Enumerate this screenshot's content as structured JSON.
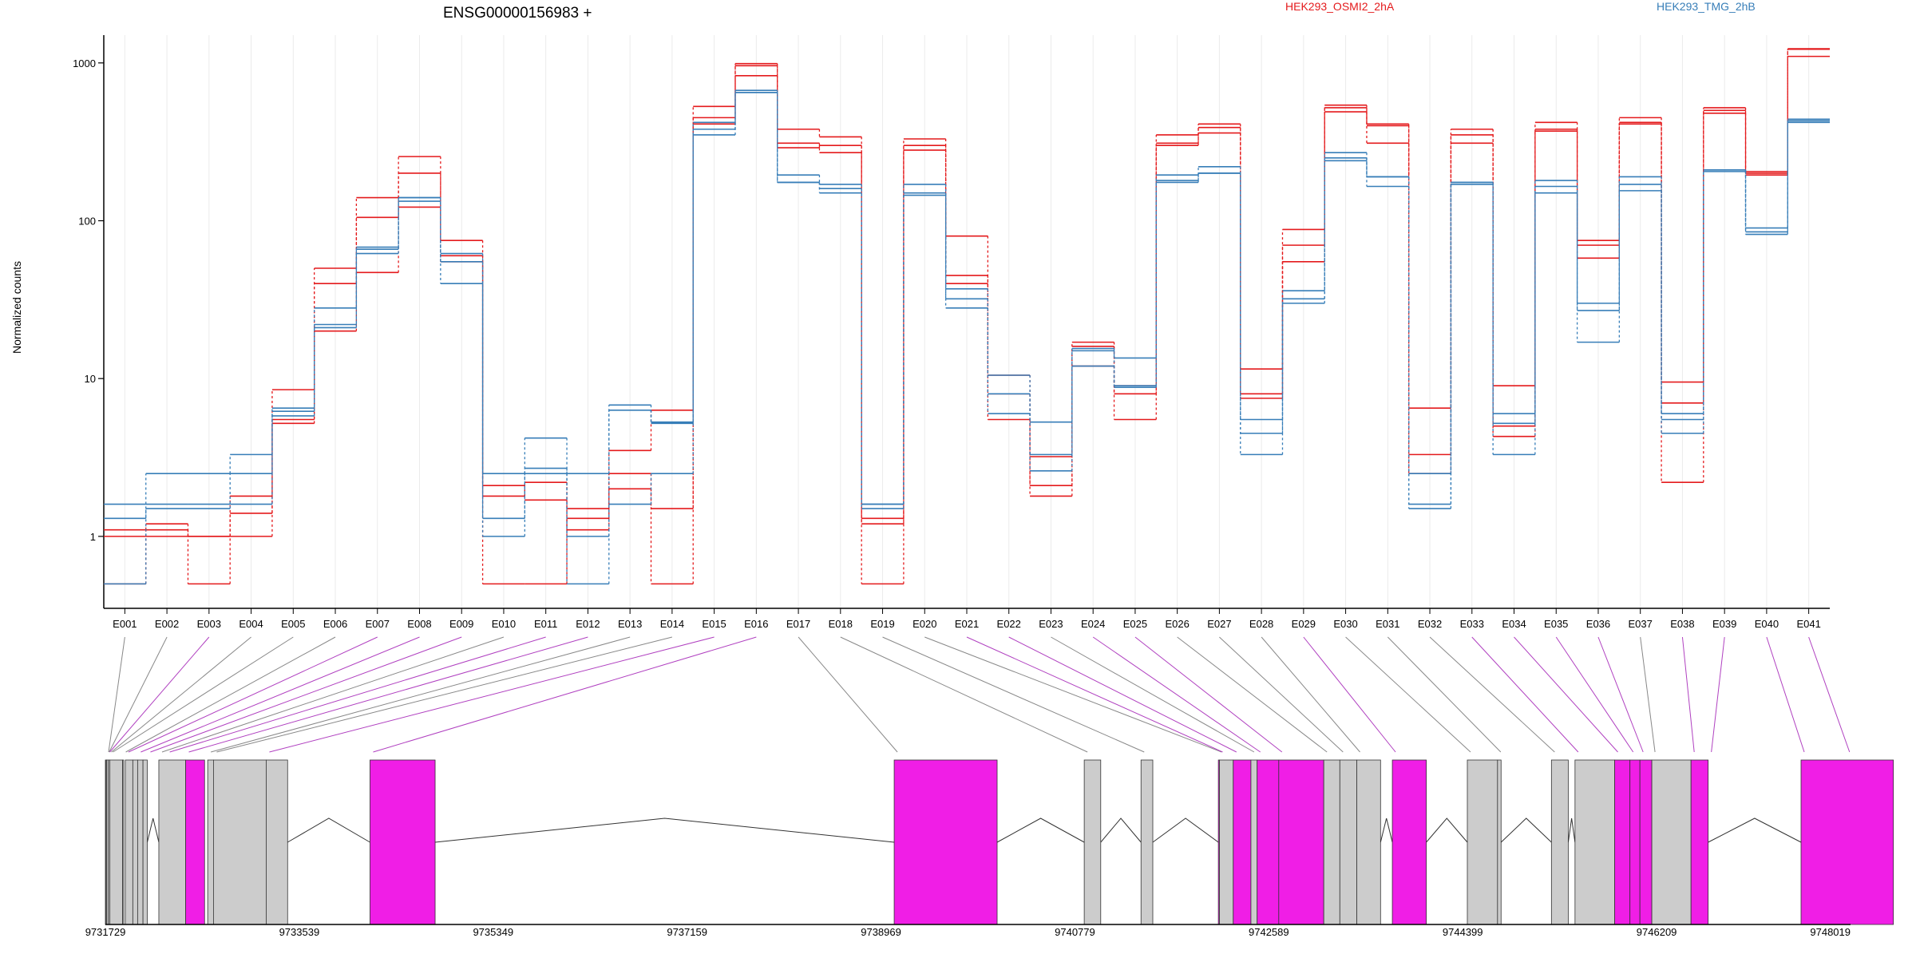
{
  "chart_data": {
    "type": "line",
    "title": "ENSG00000156983 +",
    "ylabel": "Normalized counts",
    "yscale": "log",
    "ylim": [
      0.35,
      1500
    ],
    "yticks": [
      1,
      10,
      100,
      1000
    ],
    "ytick_labels": [
      "1",
      "10",
      "100",
      "1000"
    ],
    "categories": [
      "E001",
      "E002",
      "E003",
      "E004",
      "E005",
      "E006",
      "E007",
      "E008",
      "E009",
      "E010",
      "E011",
      "E012",
      "E013",
      "E014",
      "E015",
      "E016",
      "E017",
      "E018",
      "E019",
      "E020",
      "E021",
      "E022",
      "E023",
      "E024",
      "E025",
      "E026",
      "E027",
      "E028",
      "E029",
      "E030",
      "E031",
      "E032",
      "E033",
      "E034",
      "E035",
      "E036",
      "E037",
      "E038",
      "E039",
      "E040",
      "E041"
    ],
    "legend": [
      {
        "name": "HEK293_OSMI2_2hA",
        "color": "#e41a1c"
      },
      {
        "name": "HEK293_TMG_2hB",
        "color": "#377eb8"
      }
    ],
    "series": [
      {
        "group": "HEK293_OSMI2_2hA",
        "color": "#e41a1c",
        "values": [
          1.1,
          1.2,
          1.0,
          1.0,
          5.5,
          20,
          47,
          122,
          60,
          2.1,
          1.7,
          1.1,
          2.0,
          1.5,
          450,
          990,
          310,
          270,
          1.3,
          300,
          45,
          5.5,
          1.8,
          12,
          9,
          310,
          360,
          7.5,
          55,
          490,
          310,
          3.3,
          310,
          4.3,
          370,
          58,
          410,
          2.2,
          500,
          200,
          1230
        ]
      },
      {
        "group": "HEK293_OSMI2_2hA",
        "color": "#e41a1c",
        "values": [
          1.0,
          1.1,
          0.5,
          1.4,
          8.5,
          50,
          140,
          255,
          75,
          1.8,
          2.2,
          1.5,
          2.5,
          0.5,
          530,
          960,
          380,
          340,
          0.5,
          330,
          80,
          8,
          2.1,
          17,
          5.5,
          350,
          410,
          11.5,
          88,
          540,
          410,
          6.5,
          380,
          9,
          420,
          75,
          450,
          9.5,
          520,
          205,
          1100
        ]
      },
      {
        "group": "HEK293_OSMI2_2hA",
        "color": "#e41a1c",
        "values": [
          0.5,
          1.0,
          1.0,
          1.8,
          5.2,
          40,
          105,
          200,
          55,
          0.5,
          0.5,
          1.3,
          3.5,
          6.3,
          410,
          830,
          290,
          300,
          1.2,
          280,
          40,
          10.5,
          3.2,
          16,
          8,
          300,
          390,
          8,
          70,
          520,
          400,
          2.5,
          350,
          5,
          380,
          70,
          420,
          7,
          480,
          195,
          1220
        ]
      },
      {
        "group": "HEK293_TMG_2hB",
        "color": "#377eb8",
        "values": [
          1.6,
          2.5,
          2.5,
          3.3,
          6.5,
          28,
          68,
          140,
          62,
          2.5,
          4.2,
          2.5,
          6.8,
          5.2,
          420,
          650,
          195,
          170,
          1.6,
          170,
          37,
          8,
          5.3,
          15.5,
          13.5,
          195,
          220,
          5.5,
          36,
          270,
          190,
          2.5,
          175,
          6,
          180,
          30,
          190,
          5.5,
          210,
          90,
          440
        ]
      },
      {
        "group": "HEK293_TMG_2hB",
        "color": "#377eb8",
        "values": [
          1.3,
          1.6,
          1.6,
          1.6,
          5.8,
          22,
          66,
          133,
          40,
          1.3,
          2.5,
          0.5,
          1.6,
          2.5,
          350,
          670,
          175,
          150,
          1.6,
          150,
          28,
          6,
          2.6,
          12,
          9,
          175,
          200,
          3.3,
          30,
          240,
          165,
          1.6,
          170,
          3.3,
          150,
          17,
          155,
          4.5,
          205,
          82,
          420
        ]
      },
      {
        "group": "HEK293_TMG_2hB",
        "color": "#377eb8",
        "values": [
          0.5,
          1.5,
          1.5,
          2.5,
          6.2,
          21,
          62,
          140,
          55,
          1.0,
          2.7,
          1.0,
          6.3,
          5.3,
          380,
          650,
          175,
          160,
          1.5,
          145,
          32,
          10.5,
          3.3,
          15,
          8.8,
          180,
          200,
          4.5,
          32,
          250,
          190,
          1.5,
          175,
          5.2,
          165,
          27,
          170,
          6,
          210,
          85,
          430
        ]
      }
    ],
    "gene_model_coordinates": [
      "9731729",
      "9733539",
      "9735349",
      "9737159",
      "9738969",
      "9740779",
      "9742589",
      "9744399",
      "9746209",
      "9748019"
    ],
    "highlight_color": "#f01ee6",
    "exon_color": "#cccccc"
  }
}
